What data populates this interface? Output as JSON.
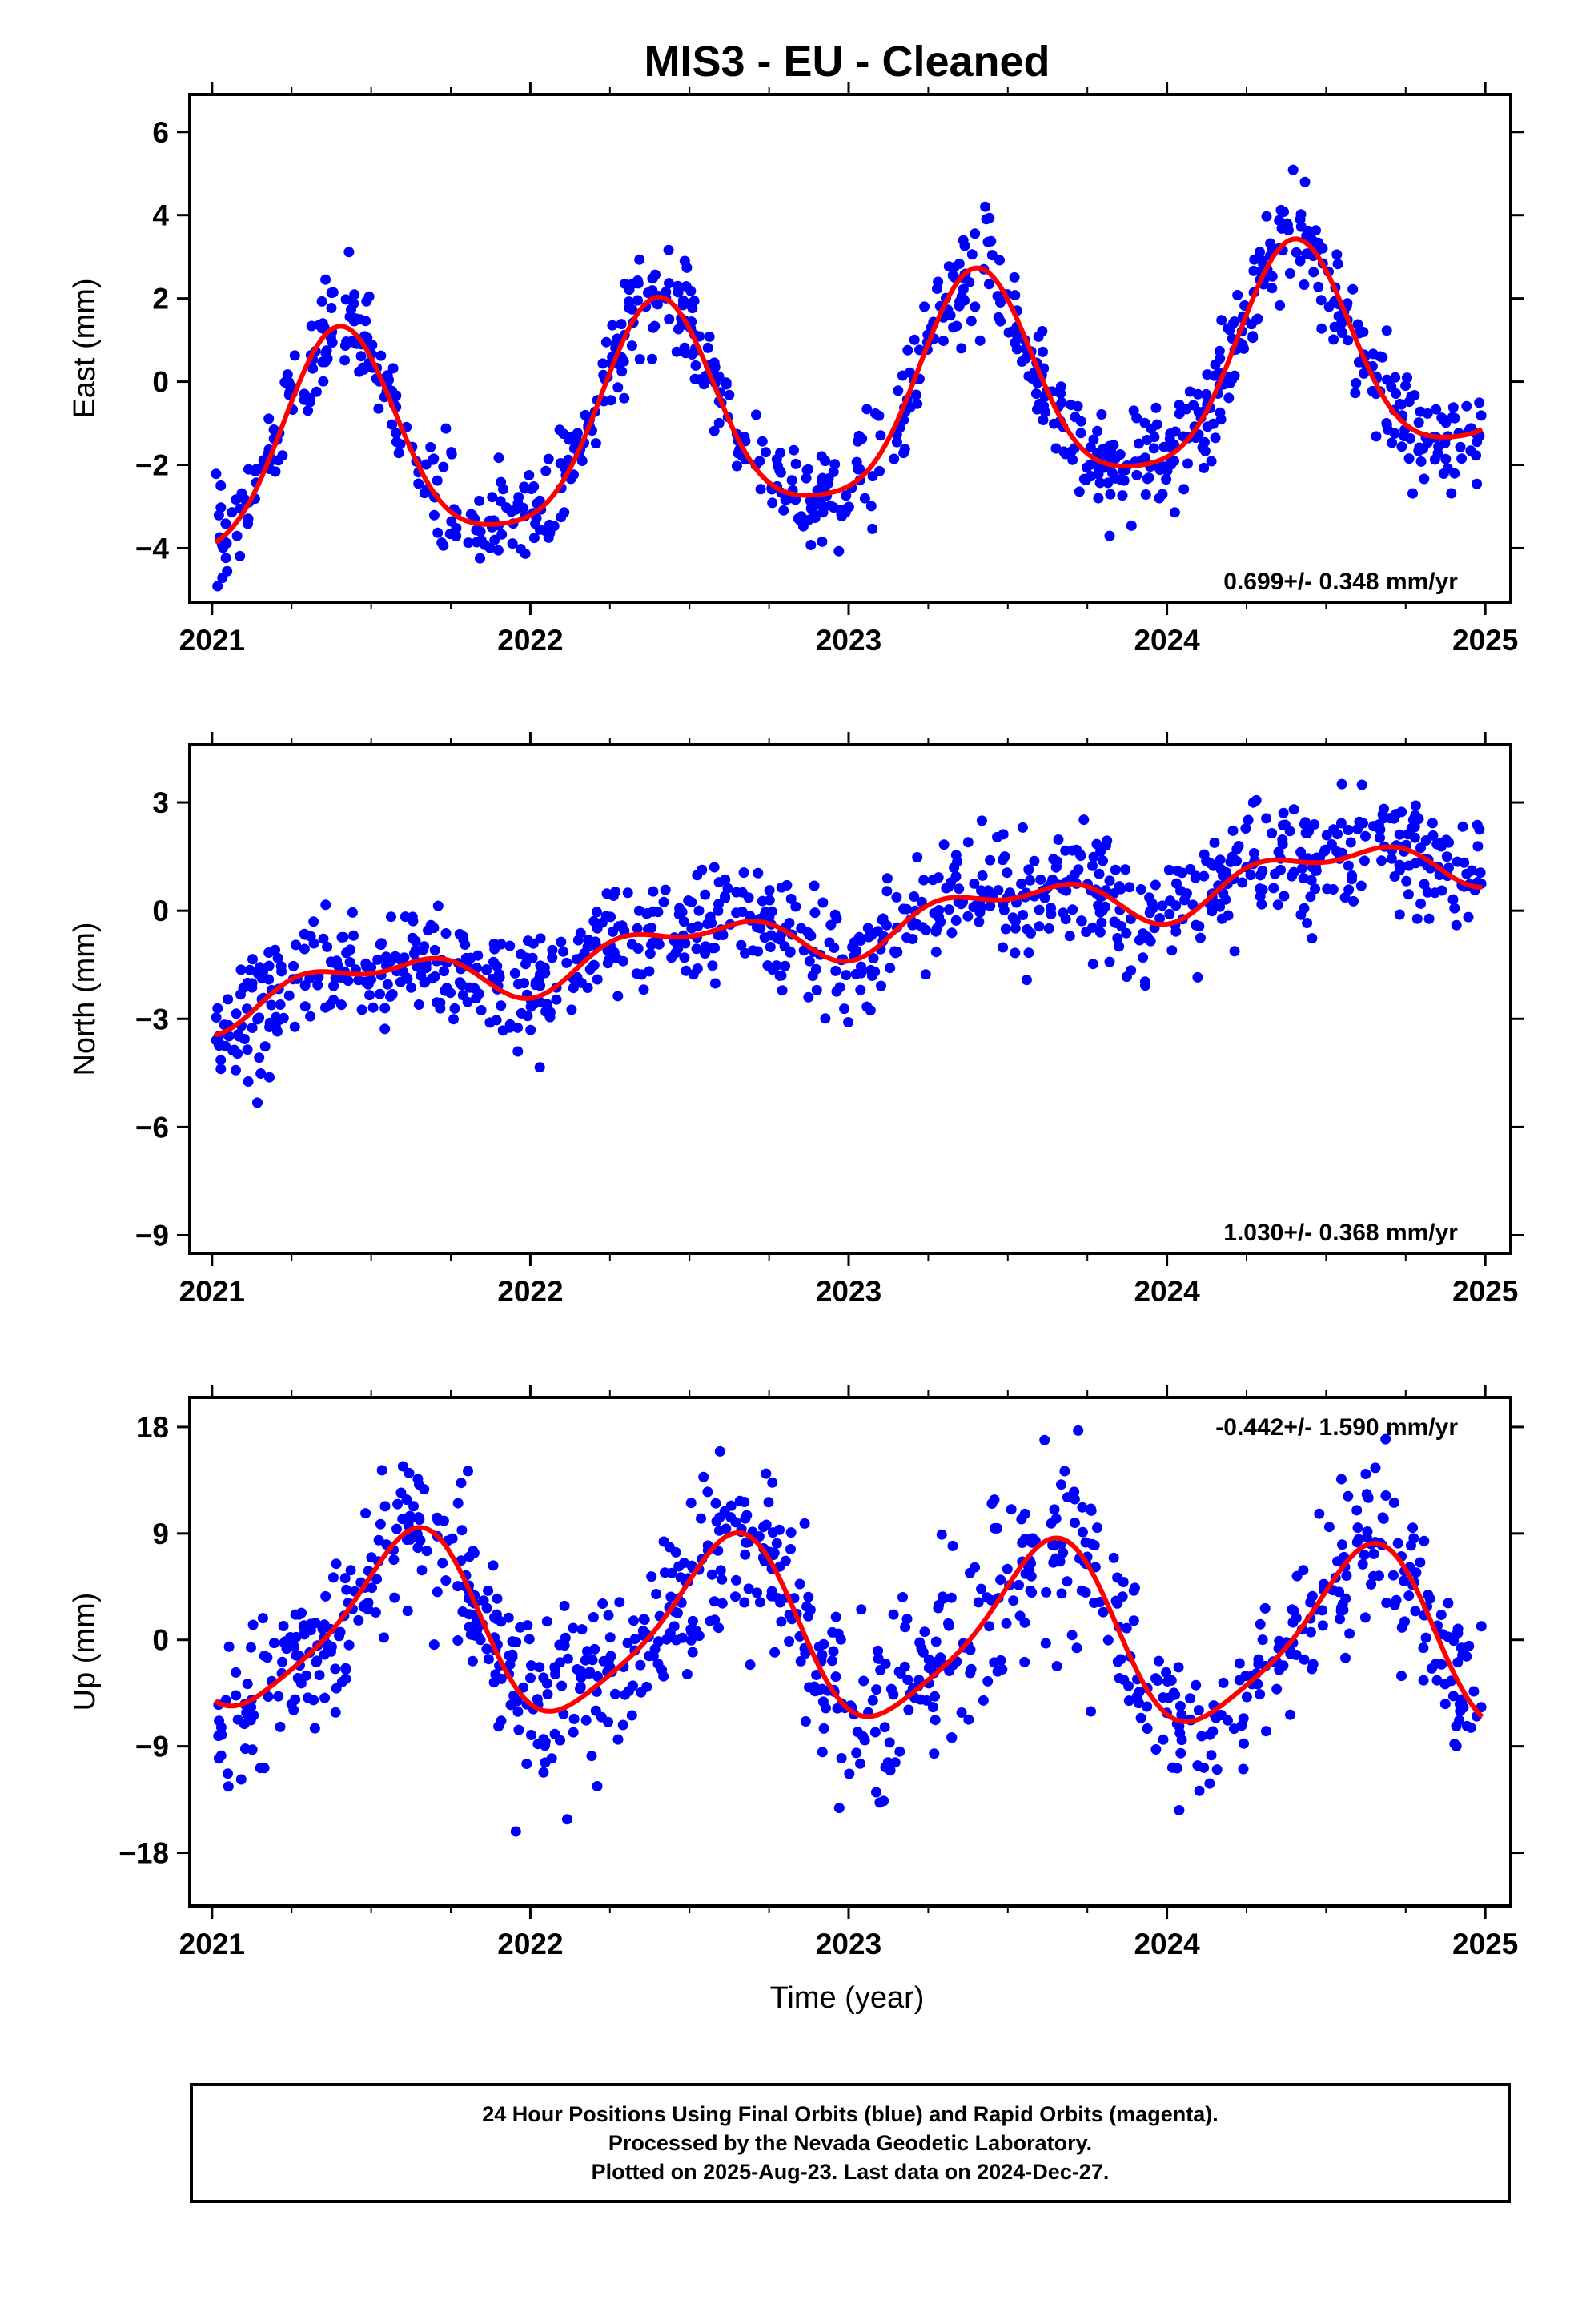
{
  "chart_data": {
    "title": "MIS3  - EU - Cleaned",
    "xlabel": "Time (year)",
    "xlim": [
      2020.93,
      2025.08
    ],
    "xticks": [
      2021,
      2022,
      2023,
      2024,
      2025
    ],
    "xtick_labels": [
      "2021",
      "2022",
      "2023",
      "2024",
      "2025"
    ],
    "panels": [
      {
        "type": "scatter",
        "ylabel": "East (mm)",
        "ylim": [
          -5.3,
          6.9
        ],
        "yticks": [
          -4,
          -2,
          0,
          2,
          4,
          6
        ],
        "ytick_labels": [
          "−4",
          "−2",
          "0",
          "2",
          "4",
          "6"
        ],
        "trend_label": "0.699+/- 0.348 mm/yr",
        "trend_label_position": "bottom-right",
        "model": {
          "offset": -0.6,
          "rate": 0.699,
          "t0": 2023.0,
          "annual_amp": 2.55,
          "annual_phase": 2021.4,
          "semiannual_amp": 0.5,
          "semiannual_phase": 2021.9
        },
        "noise_sd": 0.6,
        "series": [
          {
            "name": "Final Orbits",
            "color": "#0000ff",
            "marker": "dot",
            "x_start": 2021.01,
            "x_end": 2024.99,
            "count": 900
          },
          {
            "name": "Model",
            "color": "#ff0000",
            "style": "line"
          }
        ]
      },
      {
        "type": "scatter",
        "ylabel": "North (mm)",
        "ylim": [
          -9.5,
          4.6
        ],
        "yticks": [
          -9,
          -6,
          -3,
          0,
          3
        ],
        "ytick_labels": [
          "−9",
          "−6",
          "−3",
          "0",
          "3"
        ],
        "trend_label": "1.030+/- 0.368 mm/yr",
        "trend_label_position": "bottom-right",
        "model": {
          "offset": -0.45,
          "rate": 1.03,
          "t0": 2023.0,
          "annual_amp": 0.6,
          "annual_phase": 2021.5,
          "semiannual_amp": 0.35,
          "semiannual_phase": 2021.75
        },
        "noise_sd": 0.8,
        "series": [
          {
            "name": "Final Orbits",
            "color": "#0000ff",
            "marker": "dot",
            "x_start": 2021.01,
            "x_end": 2024.99,
            "count": 900
          },
          {
            "name": "Model",
            "color": "#ff0000",
            "style": "line"
          }
        ]
      },
      {
        "type": "scatter",
        "ylabel": "Up (mm)",
        "ylim": [
          -22.5,
          20.5
        ],
        "yticks": [
          -18,
          -9,
          0,
          9,
          18
        ],
        "ytick_labels": [
          "−18",
          "−9",
          "0",
          "9",
          "18"
        ],
        "trend_label": "-0.442+/- 1.590 mm/yr",
        "trend_label_position": "top-right",
        "model": {
          "offset": 0.6,
          "rate": -0.442,
          "t0": 2023.0,
          "annual_amp": 7.3,
          "annual_phase": 2021.62,
          "semiannual_amp": 1.4,
          "semiannual_phase": 2021.2
        },
        "noise_sd": 3.6,
        "series": [
          {
            "name": "Final Orbits",
            "color": "#0000ff",
            "marker": "dot",
            "x_start": 2021.01,
            "x_end": 2024.99,
            "count": 900
          },
          {
            "name": "Model",
            "color": "#ff0000",
            "style": "line"
          }
        ]
      }
    ]
  },
  "footer": {
    "line1": "24 Hour Positions Using Final Orbits (blue) and Rapid Orbits (magenta).",
    "line2": "Processed by the Nevada Geodetic Laboratory.",
    "line3": "Plotted on 2025-Aug-23. Last data on 2024-Dec-27."
  }
}
